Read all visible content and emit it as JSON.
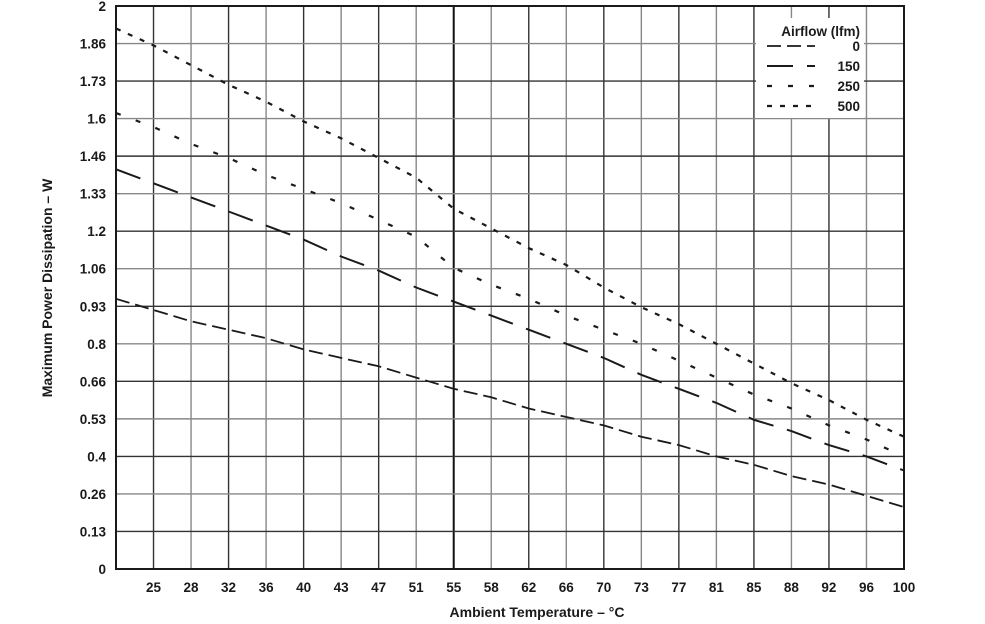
{
  "chart_data": {
    "type": "line",
    "title": "",
    "xlabel": "Ambient Temperature – °C",
    "ylabel": "Maximum Power Dissipation – W",
    "xlim": [
      21,
      100
    ],
    "ylim": [
      0,
      2
    ],
    "grid": true,
    "x_ticks": [
      "25",
      "28",
      "32",
      "36",
      "40",
      "43",
      "47",
      "51",
      "55",
      "58",
      "62",
      "66",
      "70",
      "73",
      "77",
      "81",
      "85",
      "88",
      "92",
      "96",
      "100"
    ],
    "y_ticks": [
      "0",
      "0.13",
      "0.26",
      "0.4",
      "0.53",
      "0.66",
      "0.8",
      "0.93",
      "1.06",
      "1.2",
      "1.33",
      "1.46",
      "1.6",
      "1.73",
      "1.86",
      "2"
    ],
    "legend": {
      "title": "Airflow (lfm)",
      "position": "upper right",
      "entries": [
        "0",
        "150",
        "250",
        "500"
      ]
    },
    "x": [
      21,
      25,
      28,
      32,
      36,
      40,
      43,
      47,
      51,
      55,
      58,
      62,
      66,
      70,
      73,
      77,
      81,
      85,
      88,
      92,
      96,
      100
    ],
    "series": [
      {
        "name": "0",
        "dash": "long-dash",
        "values": [
          0.96,
          0.92,
          0.88,
          0.85,
          0.82,
          0.78,
          0.75,
          0.72,
          0.68,
          0.64,
          0.61,
          0.57,
          0.54,
          0.51,
          0.47,
          0.44,
          0.4,
          0.37,
          0.33,
          0.3,
          0.26,
          0.22
        ]
      },
      {
        "name": "150",
        "dash": "longer-dash",
        "values": [
          1.42,
          1.37,
          1.32,
          1.27,
          1.22,
          1.17,
          1.11,
          1.06,
          1.0,
          0.95,
          0.9,
          0.85,
          0.8,
          0.75,
          0.69,
          0.64,
          0.59,
          0.53,
          0.49,
          0.44,
          0.4,
          0.35
        ]
      },
      {
        "name": "250",
        "dash": "sparse-dot",
        "values": [
          1.62,
          1.57,
          1.51,
          1.46,
          1.4,
          1.35,
          1.3,
          1.24,
          1.18,
          1.07,
          1.01,
          0.96,
          0.9,
          0.85,
          0.8,
          0.74,
          0.68,
          0.62,
          0.57,
          0.51,
          0.46,
          0.4
        ]
      },
      {
        "name": "500",
        "dash": "dense-dot",
        "values": [
          1.92,
          1.86,
          1.79,
          1.72,
          1.66,
          1.59,
          1.53,
          1.46,
          1.39,
          1.28,
          1.21,
          1.14,
          1.08,
          1.0,
          0.93,
          0.87,
          0.8,
          0.73,
          0.66,
          0.6,
          0.53,
          0.47
        ]
      }
    ]
  }
}
